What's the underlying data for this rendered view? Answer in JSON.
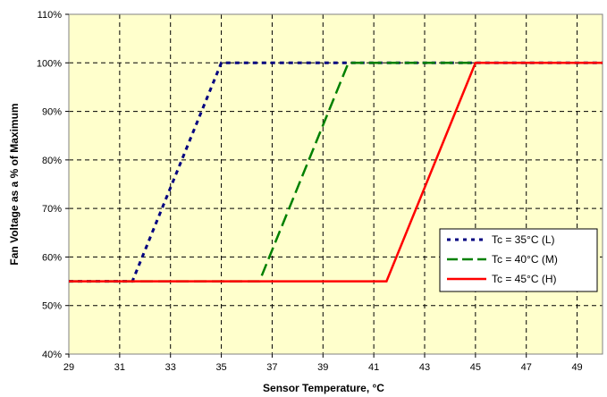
{
  "chart_data": {
    "type": "line",
    "xlabel": "Sensor Temperature, °C",
    "ylabel": "Fan Voltage as a % of Maximum",
    "xlim": [
      29,
      50
    ],
    "ylim": [
      40,
      110
    ],
    "x_ticks": [
      29,
      31,
      33,
      35,
      37,
      39,
      41,
      43,
      45,
      47,
      49
    ],
    "x_tick_labels": [
      "29",
      "31",
      "33",
      "35",
      "37",
      "39",
      "41",
      "43",
      "45",
      "47",
      "49"
    ],
    "y_ticks": [
      40,
      50,
      60,
      70,
      80,
      90,
      100,
      110
    ],
    "y_tick_labels": [
      "40%",
      "50%",
      "60%",
      "70%",
      "80%",
      "90%",
      "100%",
      "110%"
    ],
    "grid": true,
    "plot_background": "#ffffcc",
    "legend_position": "center-right",
    "series": [
      {
        "name": "Tc = 35°C (L)",
        "color": "#000080",
        "style": "dotted",
        "x": [
          29,
          31.5,
          35,
          50
        ],
        "y": [
          55,
          55,
          100,
          100
        ]
      },
      {
        "name": "Tc = 40°C (M)",
        "color": "#008000",
        "style": "dashed",
        "x": [
          29,
          36.5,
          40,
          50
        ],
        "y": [
          55,
          55,
          100,
          100
        ]
      },
      {
        "name": "Tc = 45°C (H)",
        "color": "#ff0000",
        "style": "solid",
        "x": [
          29,
          41.5,
          45,
          50
        ],
        "y": [
          55,
          55,
          100,
          100
        ]
      }
    ]
  }
}
